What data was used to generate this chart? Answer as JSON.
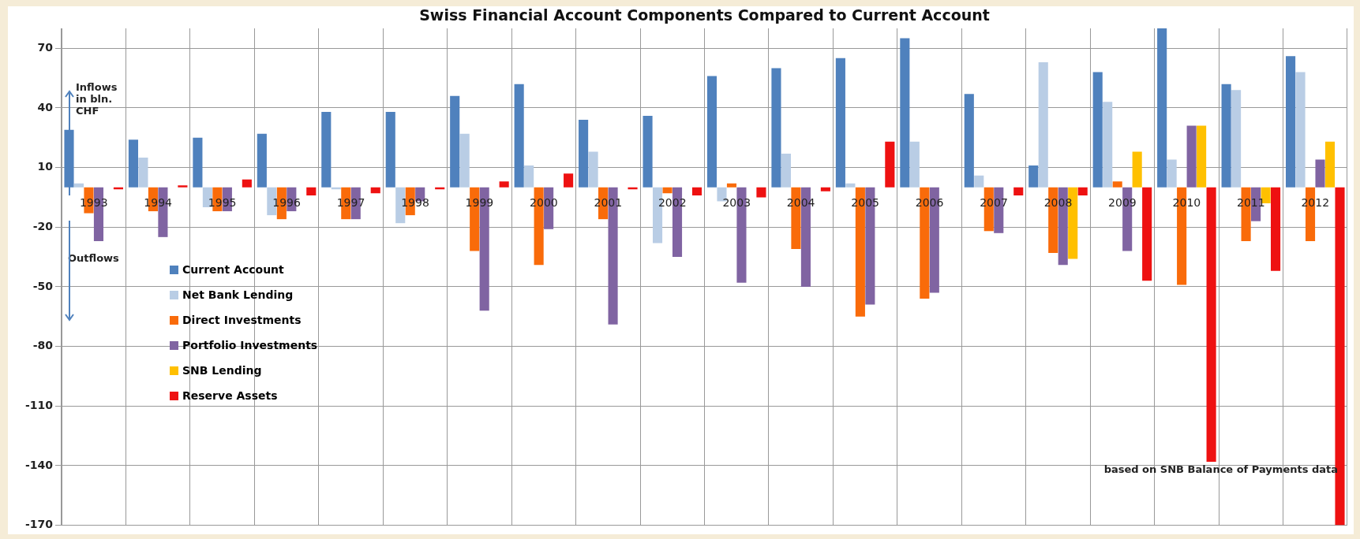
{
  "chart_data": {
    "type": "bar",
    "title": "Swiss Financial Account Components Compared to Current Account",
    "categories": [
      "1993",
      "1994",
      "1995",
      "1996",
      "1997",
      "1998",
      "1999",
      "2000",
      "2001",
      "2002",
      "2003",
      "2004",
      "2005",
      "2006",
      "2007",
      "2008",
      "2009",
      "2010",
      "2011",
      "2012"
    ],
    "series": [
      {
        "name": "Current Account",
        "color": "#4f81bd",
        "values": [
          29,
          24,
          25,
          27,
          38,
          38,
          46,
          52,
          34,
          36,
          56,
          60,
          65,
          75,
          47,
          11,
          58,
          80,
          52,
          66
        ]
      },
      {
        "name": "Net Bank Lending",
        "color": "#b9cde5",
        "values": [
          2,
          15,
          -10,
          -14,
          -1,
          -18,
          27,
          11,
          18,
          -28,
          -7,
          17,
          2,
          23,
          6,
          63,
          43,
          14,
          49,
          58
        ]
      },
      {
        "name": "Direct Investments",
        "color": "#f96b0a",
        "values": [
          -13,
          -12,
          -12,
          -16,
          -16,
          -14,
          -32,
          -39,
          -16,
          -3,
          2,
          -31,
          -65,
          -56,
          -22,
          -33,
          3,
          -49,
          -27,
          -27
        ]
      },
      {
        "name": "Portfolio Investments",
        "color": "#8064a2",
        "values": [
          -27,
          -25,
          -12,
          -12,
          -16,
          -7,
          -62,
          -21,
          -69,
          -35,
          -48,
          -50,
          -59,
          -53,
          -23,
          -39,
          -32,
          31,
          -17,
          14
        ]
      },
      {
        "name": "SNB Lending",
        "color": "#ffc000",
        "values": [
          null,
          null,
          null,
          null,
          null,
          null,
          null,
          null,
          null,
          null,
          null,
          null,
          null,
          null,
          null,
          -36,
          18,
          31,
          -8,
          23
        ]
      },
      {
        "name": "Reserve Assets",
        "color": "#ee1111",
        "values": [
          -1,
          1,
          4,
          -4,
          -3,
          -1,
          3,
          7,
          -1,
          -4,
          -5,
          -2,
          23,
          null,
          -4,
          -4,
          -47,
          -138,
          -42,
          -170
        ]
      }
    ],
    "ylim": [
      -170,
      80
    ],
    "yticks": [
      -170,
      -140,
      -110,
      -80,
      -50,
      -20,
      10,
      40,
      70
    ],
    "grid": true,
    "legend": "left",
    "annotations": [
      "Inflows in bln. CHF",
      "Outflows",
      "based on SNB Balance of Payments data"
    ]
  }
}
